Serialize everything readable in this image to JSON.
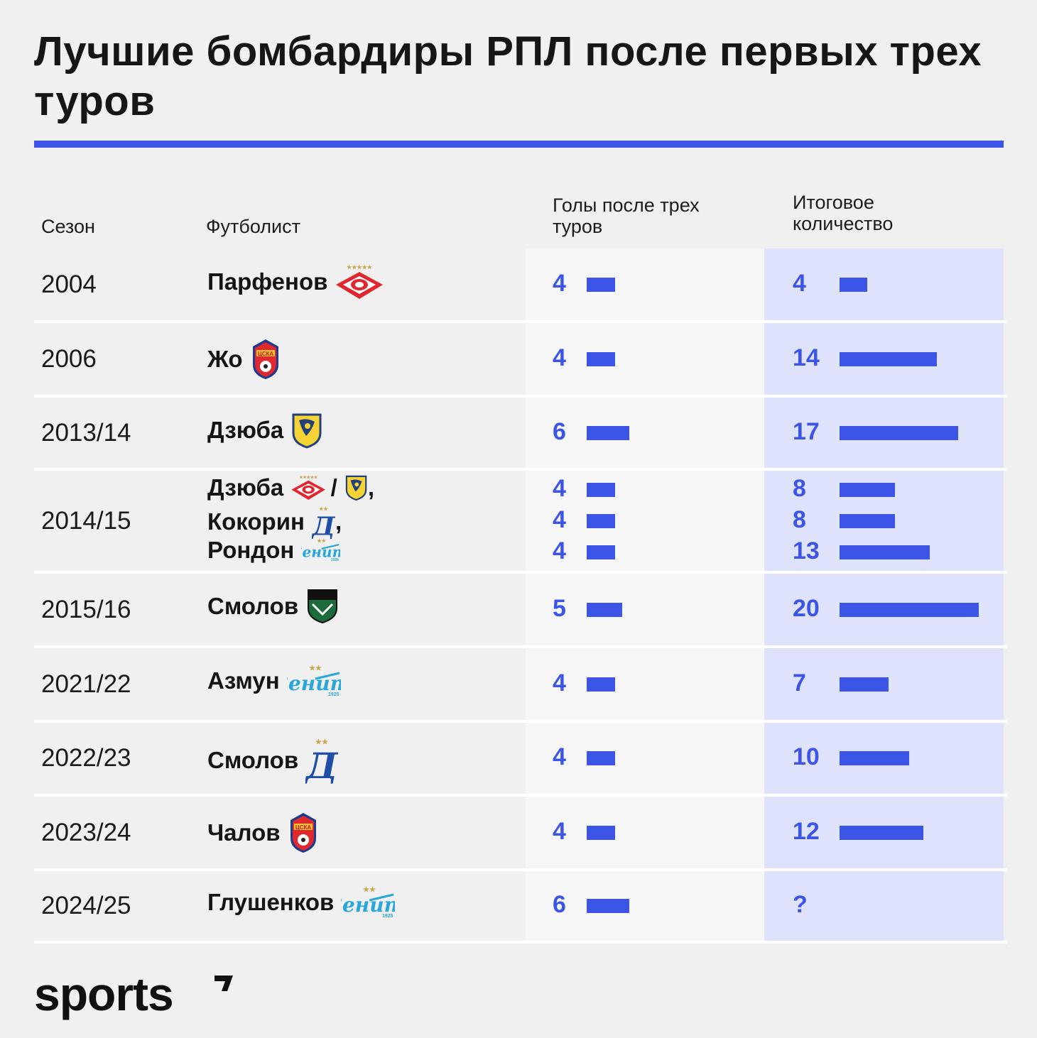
{
  "title": "Лучшие бомбардиры РПЛ после первых трех туров",
  "headers": {
    "season": "Сезон",
    "player": "Футболист",
    "goals3": [
      "Голы после трех",
      "туров"
    ],
    "final": [
      "Итоговое",
      "количество"
    ]
  },
  "colors": {
    "accent": "#3c55e6",
    "blue_column": "#dfe2fb",
    "light_column": "#f6f6f6"
  },
  "brand": "sports",
  "chart_data": {
    "type": "table",
    "title": "Лучшие бомбардиры РПЛ после первых трех туров",
    "columns": [
      "Сезон",
      "Футболист",
      "Голы после трех туров",
      "Итоговое количество"
    ],
    "rows": [
      {
        "season": "2004",
        "entries": [
          {
            "player": "Парфенов",
            "clubs": [
              "spartak-logo"
            ],
            "goals3": 4,
            "final": 4
          }
        ]
      },
      {
        "season": "2006",
        "entries": [
          {
            "player": "Жо",
            "clubs": [
              "cska-logo"
            ],
            "goals3": 4,
            "final": 14
          }
        ]
      },
      {
        "season": "2013/14",
        "entries": [
          {
            "player": "Дзюба",
            "clubs": [
              "rostov-logo"
            ],
            "goals3": 6,
            "final": 17
          }
        ]
      },
      {
        "season": "2014/15",
        "entries": [
          {
            "player": "Дзюба",
            "clubs": [
              "spartak-logo",
              "rostov-logo"
            ],
            "sep": "/",
            "suffix": ",",
            "goals3": 4,
            "final": 8
          },
          {
            "player": "Кокорин",
            "clubs": [
              "dynamo-logo"
            ],
            "suffix": ",",
            "goals3": 4,
            "final": 8
          },
          {
            "player": "Рондон",
            "clubs": [
              "zenit-logo"
            ],
            "goals3": 4,
            "final": 13
          }
        ]
      },
      {
        "season": "2015/16",
        "entries": [
          {
            "player": "Смолов",
            "clubs": [
              "krasnodar-logo"
            ],
            "goals3": 5,
            "final": 20
          }
        ]
      },
      {
        "season": "2021/22",
        "entries": [
          {
            "player": "Азмун",
            "clubs": [
              "zenit-logo"
            ],
            "goals3": 4,
            "final": 7
          }
        ]
      },
      {
        "season": "2022/23",
        "entries": [
          {
            "player": "Смолов",
            "clubs": [
              "dynamo-logo"
            ],
            "goals3": 4,
            "final": 10
          }
        ]
      },
      {
        "season": "2023/24",
        "entries": [
          {
            "player": "Чалов",
            "clubs": [
              "cska-logo"
            ],
            "goals3": 4,
            "final": 12
          }
        ]
      },
      {
        "season": "2024/25",
        "entries": [
          {
            "player": "Глушенков",
            "clubs": [
              "zenit-logo"
            ],
            "goals3": 6,
            "final": null,
            "final_label": "?"
          }
        ]
      }
    ]
  }
}
